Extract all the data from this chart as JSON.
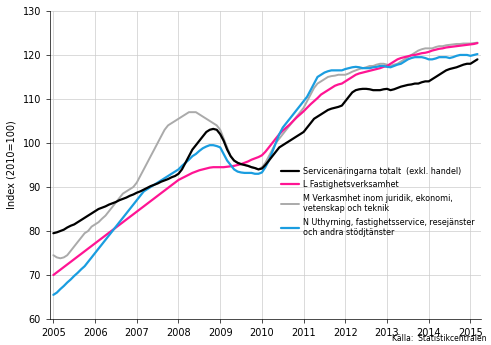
{
  "ylabel": "Index (2010=100)",
  "source": "Källa:  Statistikcentralen",
  "ylim": [
    60,
    130
  ],
  "xlim": [
    2004.92,
    2015.25
  ],
  "yticks": [
    60,
    70,
    80,
    90,
    100,
    110,
    120,
    130
  ],
  "xticks": [
    2005,
    2006,
    2007,
    2008,
    2009,
    2010,
    2011,
    2012,
    2013,
    2014,
    2015
  ],
  "legend": [
    "Servicenäringarna totalt  (exkl. handel)",
    "L Fastighetsverksamhet",
    "M Verkasmhet inom juridik, ekonomi,\nvetenskap och teknik",
    "N Uthyrning, fastighetsservice, resejänster\noch andra stödjtänster"
  ],
  "colors": [
    "#000000",
    "#ff1493",
    "#aaaaaa",
    "#1a9de0"
  ],
  "linewidths": [
    1.6,
    1.6,
    1.4,
    1.6
  ],
  "series": {
    "black": {
      "x": [
        2005.0,
        2005.083,
        2005.167,
        2005.25,
        2005.333,
        2005.417,
        2005.5,
        2005.583,
        2005.667,
        2005.75,
        2005.833,
        2005.917,
        2006.0,
        2006.083,
        2006.167,
        2006.25,
        2006.333,
        2006.417,
        2006.5,
        2006.583,
        2006.667,
        2006.75,
        2006.833,
        2006.917,
        2007.0,
        2007.083,
        2007.167,
        2007.25,
        2007.333,
        2007.417,
        2007.5,
        2007.583,
        2007.667,
        2007.75,
        2007.833,
        2007.917,
        2008.0,
        2008.083,
        2008.167,
        2008.25,
        2008.333,
        2008.417,
        2008.5,
        2008.583,
        2008.667,
        2008.75,
        2008.833,
        2008.917,
        2009.0,
        2009.083,
        2009.167,
        2009.25,
        2009.333,
        2009.417,
        2009.5,
        2009.583,
        2009.667,
        2009.75,
        2009.833,
        2009.917,
        2010.0,
        2010.083,
        2010.167,
        2010.25,
        2010.333,
        2010.417,
        2010.5,
        2010.583,
        2010.667,
        2010.75,
        2010.833,
        2010.917,
        2011.0,
        2011.083,
        2011.167,
        2011.25,
        2011.333,
        2011.417,
        2011.5,
        2011.583,
        2011.667,
        2011.75,
        2011.833,
        2011.917,
        2012.0,
        2012.083,
        2012.167,
        2012.25,
        2012.333,
        2012.417,
        2012.5,
        2012.583,
        2012.667,
        2012.75,
        2012.833,
        2012.917,
        2013.0,
        2013.083,
        2013.167,
        2013.25,
        2013.333,
        2013.417,
        2013.5,
        2013.583,
        2013.667,
        2013.75,
        2013.833,
        2013.917,
        2014.0,
        2014.083,
        2014.167,
        2014.25,
        2014.333,
        2014.417,
        2014.5,
        2014.583,
        2014.667,
        2014.75,
        2014.833,
        2014.917,
        2015.0,
        2015.083,
        2015.167
      ],
      "y": [
        79.5,
        79.7,
        80.0,
        80.3,
        80.8,
        81.2,
        81.5,
        82.0,
        82.5,
        83.0,
        83.5,
        84.0,
        84.5,
        85.0,
        85.3,
        85.6,
        86.0,
        86.3,
        86.6,
        87.0,
        87.3,
        87.6,
        88.0,
        88.3,
        88.7,
        89.0,
        89.4,
        89.8,
        90.2,
        90.5,
        90.8,
        91.2,
        91.5,
        91.8,
        92.2,
        92.5,
        93.0,
        94.0,
        95.5,
        97.0,
        98.5,
        99.5,
        100.5,
        101.5,
        102.5,
        103.0,
        103.2,
        103.0,
        102.0,
        100.5,
        98.5,
        97.0,
        96.0,
        95.5,
        95.2,
        95.0,
        94.8,
        94.5,
        94.3,
        94.0,
        94.2,
        95.0,
        96.0,
        97.0,
        98.0,
        99.0,
        99.5,
        100.0,
        100.5,
        101.0,
        101.5,
        102.0,
        102.5,
        103.5,
        104.5,
        105.5,
        106.0,
        106.5,
        107.0,
        107.5,
        107.8,
        108.0,
        108.2,
        108.5,
        109.5,
        110.5,
        111.5,
        112.0,
        112.2,
        112.3,
        112.3,
        112.2,
        112.0,
        112.0,
        112.0,
        112.2,
        112.3,
        112.0,
        112.2,
        112.5,
        112.8,
        113.0,
        113.2,
        113.3,
        113.5,
        113.5,
        113.8,
        114.0,
        114.0,
        114.5,
        115.0,
        115.5,
        116.0,
        116.5,
        116.8,
        117.0,
        117.2,
        117.5,
        117.8,
        118.0,
        118.0,
        118.5,
        119.0
      ]
    },
    "pink": {
      "x": [
        2005.0,
        2005.083,
        2005.167,
        2005.25,
        2005.333,
        2005.417,
        2005.5,
        2005.583,
        2005.667,
        2005.75,
        2005.833,
        2005.917,
        2006.0,
        2006.083,
        2006.167,
        2006.25,
        2006.333,
        2006.417,
        2006.5,
        2006.583,
        2006.667,
        2006.75,
        2006.833,
        2006.917,
        2007.0,
        2007.083,
        2007.167,
        2007.25,
        2007.333,
        2007.417,
        2007.5,
        2007.583,
        2007.667,
        2007.75,
        2007.833,
        2007.917,
        2008.0,
        2008.083,
        2008.167,
        2008.25,
        2008.333,
        2008.417,
        2008.5,
        2008.583,
        2008.667,
        2008.75,
        2008.833,
        2008.917,
        2009.0,
        2009.083,
        2009.167,
        2009.25,
        2009.333,
        2009.417,
        2009.5,
        2009.583,
        2009.667,
        2009.75,
        2009.833,
        2009.917,
        2010.0,
        2010.083,
        2010.167,
        2010.25,
        2010.333,
        2010.417,
        2010.5,
        2010.583,
        2010.667,
        2010.75,
        2010.833,
        2010.917,
        2011.0,
        2011.083,
        2011.167,
        2011.25,
        2011.333,
        2011.417,
        2011.5,
        2011.583,
        2011.667,
        2011.75,
        2011.833,
        2011.917,
        2012.0,
        2012.083,
        2012.167,
        2012.25,
        2012.333,
        2012.417,
        2012.5,
        2012.583,
        2012.667,
        2012.75,
        2012.833,
        2012.917,
        2013.0,
        2013.083,
        2013.167,
        2013.25,
        2013.333,
        2013.417,
        2013.5,
        2013.583,
        2013.667,
        2013.75,
        2013.833,
        2013.917,
        2014.0,
        2014.083,
        2014.167,
        2014.25,
        2014.333,
        2014.417,
        2014.5,
        2014.583,
        2014.667,
        2014.75,
        2014.833,
        2014.917,
        2015.0,
        2015.083,
        2015.167
      ],
      "y": [
        70.0,
        70.6,
        71.2,
        71.8,
        72.4,
        73.0,
        73.6,
        74.2,
        74.8,
        75.4,
        76.0,
        76.6,
        77.2,
        77.8,
        78.4,
        79.0,
        79.6,
        80.2,
        80.8,
        81.4,
        82.0,
        82.6,
        83.2,
        83.8,
        84.4,
        85.0,
        85.6,
        86.2,
        86.8,
        87.4,
        88.0,
        88.6,
        89.2,
        89.8,
        90.4,
        91.0,
        91.6,
        92.0,
        92.4,
        92.8,
        93.2,
        93.5,
        93.8,
        94.0,
        94.2,
        94.4,
        94.5,
        94.5,
        94.5,
        94.5,
        94.6,
        94.7,
        94.8,
        95.0,
        95.2,
        95.5,
        95.8,
        96.2,
        96.5,
        96.8,
        97.2,
        98.0,
        99.0,
        100.0,
        101.0,
        102.0,
        102.8,
        103.5,
        104.2,
        105.0,
        105.8,
        106.5,
        107.2,
        108.0,
        108.8,
        109.5,
        110.2,
        111.0,
        111.5,
        112.0,
        112.5,
        113.0,
        113.3,
        113.5,
        114.0,
        114.5,
        115.0,
        115.5,
        115.8,
        116.0,
        116.2,
        116.4,
        116.6,
        116.8,
        117.0,
        117.3,
        117.5,
        118.0,
        118.5,
        119.0,
        119.3,
        119.5,
        119.7,
        119.9,
        120.0,
        120.2,
        120.4,
        120.5,
        120.7,
        121.0,
        121.2,
        121.4,
        121.5,
        121.7,
        121.8,
        121.9,
        122.0,
        122.1,
        122.2,
        122.3,
        122.4,
        122.5,
        122.7
      ]
    },
    "gray": {
      "x": [
        2005.0,
        2005.083,
        2005.167,
        2005.25,
        2005.333,
        2005.417,
        2005.5,
        2005.583,
        2005.667,
        2005.75,
        2005.833,
        2005.917,
        2006.0,
        2006.083,
        2006.167,
        2006.25,
        2006.333,
        2006.417,
        2006.5,
        2006.583,
        2006.667,
        2006.75,
        2006.833,
        2006.917,
        2007.0,
        2007.083,
        2007.167,
        2007.25,
        2007.333,
        2007.417,
        2007.5,
        2007.583,
        2007.667,
        2007.75,
        2007.833,
        2007.917,
        2008.0,
        2008.083,
        2008.167,
        2008.25,
        2008.333,
        2008.417,
        2008.5,
        2008.583,
        2008.667,
        2008.75,
        2008.833,
        2008.917,
        2009.0,
        2009.083,
        2009.167,
        2009.25,
        2009.333,
        2009.417,
        2009.5,
        2009.583,
        2009.667,
        2009.75,
        2009.833,
        2009.917,
        2010.0,
        2010.083,
        2010.167,
        2010.25,
        2010.333,
        2010.417,
        2010.5,
        2010.583,
        2010.667,
        2010.75,
        2010.833,
        2010.917,
        2011.0,
        2011.083,
        2011.167,
        2011.25,
        2011.333,
        2011.417,
        2011.5,
        2011.583,
        2011.667,
        2011.75,
        2011.833,
        2011.917,
        2012.0,
        2012.083,
        2012.167,
        2012.25,
        2012.333,
        2012.417,
        2012.5,
        2012.583,
        2012.667,
        2012.75,
        2012.833,
        2012.917,
        2013.0,
        2013.083,
        2013.167,
        2013.25,
        2013.333,
        2013.417,
        2013.5,
        2013.583,
        2013.667,
        2013.75,
        2013.833,
        2013.917,
        2014.0,
        2014.083,
        2014.167,
        2014.25,
        2014.333,
        2014.417,
        2014.5,
        2014.583,
        2014.667,
        2014.75,
        2014.833,
        2014.917,
        2015.0,
        2015.083,
        2015.167
      ],
      "y": [
        74.5,
        74.0,
        73.8,
        74.0,
        74.5,
        75.5,
        76.5,
        77.5,
        78.5,
        79.5,
        80.0,
        81.0,
        81.5,
        82.0,
        82.8,
        83.5,
        84.5,
        85.5,
        86.5,
        87.5,
        88.5,
        89.0,
        89.5,
        90.0,
        91.0,
        92.5,
        94.0,
        95.5,
        97.0,
        98.5,
        100.0,
        101.5,
        103.0,
        104.0,
        104.5,
        105.0,
        105.5,
        106.0,
        106.5,
        107.0,
        107.0,
        107.0,
        106.5,
        106.0,
        105.5,
        105.0,
        104.5,
        104.0,
        103.0,
        101.0,
        99.0,
        97.0,
        96.0,
        95.5,
        95.2,
        95.0,
        94.8,
        94.5,
        94.3,
        94.0,
        94.5,
        95.5,
        97.0,
        98.5,
        100.0,
        101.0,
        102.0,
        103.0,
        104.0,
        105.0,
        106.0,
        107.0,
        108.0,
        109.5,
        111.0,
        112.5,
        113.5,
        114.0,
        114.5,
        115.0,
        115.2,
        115.3,
        115.5,
        115.5,
        115.5,
        115.8,
        116.2,
        116.5,
        116.8,
        117.0,
        117.2,
        117.5,
        117.5,
        117.8,
        118.0,
        118.0,
        117.8,
        117.5,
        117.8,
        118.0,
        118.5,
        119.0,
        119.5,
        120.0,
        120.5,
        121.0,
        121.3,
        121.5,
        121.5,
        121.5,
        121.8,
        122.0,
        122.0,
        122.2,
        122.3,
        122.4,
        122.5,
        122.5,
        122.6,
        122.6,
        122.6,
        122.7,
        122.8
      ]
    },
    "blue": {
      "x": [
        2005.0,
        2005.083,
        2005.167,
        2005.25,
        2005.333,
        2005.417,
        2005.5,
        2005.583,
        2005.667,
        2005.75,
        2005.833,
        2005.917,
        2006.0,
        2006.083,
        2006.167,
        2006.25,
        2006.333,
        2006.417,
        2006.5,
        2006.583,
        2006.667,
        2006.75,
        2006.833,
        2006.917,
        2007.0,
        2007.083,
        2007.167,
        2007.25,
        2007.333,
        2007.417,
        2007.5,
        2007.583,
        2007.667,
        2007.75,
        2007.833,
        2007.917,
        2008.0,
        2008.083,
        2008.167,
        2008.25,
        2008.333,
        2008.417,
        2008.5,
        2008.583,
        2008.667,
        2008.75,
        2008.833,
        2008.917,
        2009.0,
        2009.083,
        2009.167,
        2009.25,
        2009.333,
        2009.417,
        2009.5,
        2009.583,
        2009.667,
        2009.75,
        2009.833,
        2009.917,
        2010.0,
        2010.083,
        2010.167,
        2010.25,
        2010.333,
        2010.417,
        2010.5,
        2010.583,
        2010.667,
        2010.75,
        2010.833,
        2010.917,
        2011.0,
        2011.083,
        2011.167,
        2011.25,
        2011.333,
        2011.417,
        2011.5,
        2011.583,
        2011.667,
        2011.75,
        2011.833,
        2011.917,
        2012.0,
        2012.083,
        2012.167,
        2012.25,
        2012.333,
        2012.417,
        2012.5,
        2012.583,
        2012.667,
        2012.75,
        2012.833,
        2012.917,
        2013.0,
        2013.083,
        2013.167,
        2013.25,
        2013.333,
        2013.417,
        2013.5,
        2013.583,
        2013.667,
        2013.75,
        2013.833,
        2013.917,
        2014.0,
        2014.083,
        2014.167,
        2014.25,
        2014.333,
        2014.417,
        2014.5,
        2014.583,
        2014.667,
        2014.75,
        2014.833,
        2014.917,
        2015.0,
        2015.083,
        2015.167
      ],
      "y": [
        65.5,
        66.0,
        66.8,
        67.5,
        68.3,
        69.0,
        69.8,
        70.5,
        71.3,
        72.0,
        73.0,
        74.0,
        75.0,
        76.0,
        77.0,
        78.0,
        79.0,
        80.0,
        81.0,
        82.0,
        83.0,
        84.0,
        85.0,
        86.0,
        87.0,
        88.0,
        89.0,
        89.5,
        90.0,
        90.5,
        91.0,
        91.5,
        92.0,
        92.5,
        93.0,
        93.5,
        94.0,
        94.8,
        95.5,
        96.2,
        97.0,
        97.5,
        98.2,
        98.8,
        99.2,
        99.5,
        99.5,
        99.3,
        99.0,
        97.5,
        96.0,
        95.0,
        94.0,
        93.5,
        93.3,
        93.2,
        93.2,
        93.2,
        93.0,
        93.0,
        93.3,
        94.5,
        96.0,
        98.0,
        100.0,
        102.0,
        103.5,
        104.5,
        105.5,
        106.5,
        107.5,
        108.5,
        109.5,
        110.5,
        112.0,
        113.5,
        115.0,
        115.5,
        116.0,
        116.3,
        116.5,
        116.5,
        116.5,
        116.5,
        116.8,
        117.0,
        117.2,
        117.3,
        117.2,
        117.0,
        117.0,
        117.0,
        117.2,
        117.3,
        117.5,
        117.5,
        117.3,
        117.2,
        117.5,
        117.8,
        118.0,
        118.5,
        119.0,
        119.3,
        119.5,
        119.5,
        119.5,
        119.3,
        119.0,
        119.0,
        119.2,
        119.5,
        119.5,
        119.5,
        119.3,
        119.5,
        119.8,
        120.0,
        120.0,
        120.0,
        119.8,
        120.0,
        120.2
      ]
    }
  }
}
